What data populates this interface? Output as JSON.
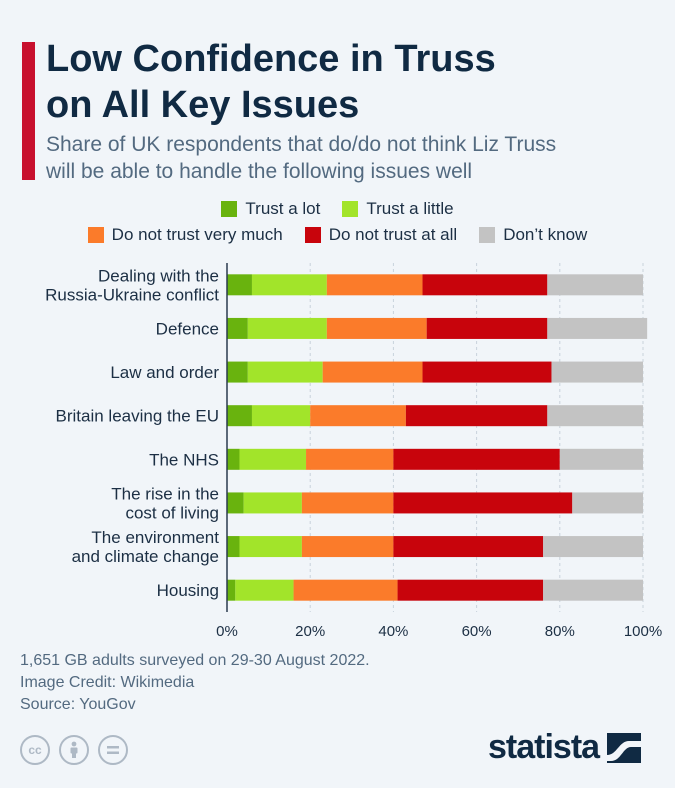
{
  "header": {
    "title_line1": "Low Confidence in Truss",
    "title_line2": "on All Key Issues",
    "subtitle_line1": "Share of UK respondents that do/do not think Liz Truss",
    "subtitle_line2": "will be able to handle the following issues well"
  },
  "colors": {
    "accent": "#c8102e",
    "trust_a_lot": "#69b30e",
    "trust_a_little": "#a2e42a",
    "not_very_much": "#fb7b2a",
    "not_at_all": "#c8040c",
    "dont_know": "#c3c3c3"
  },
  "chart_data": {
    "type": "bar",
    "orientation": "horizontal",
    "stacked": true,
    "categories": [
      [
        "Dealing with the",
        "Russia-Ukraine conflict"
      ],
      [
        "Defence"
      ],
      [
        "Law and order"
      ],
      [
        "Britain leaving the EU"
      ],
      [
        "The NHS"
      ],
      [
        "The rise in the",
        "cost of living"
      ],
      [
        "The environment",
        "and climate change"
      ],
      [
        "Housing"
      ]
    ],
    "series": [
      {
        "name": "Trust a lot",
        "color": "#69b30e",
        "values": [
          6,
          5,
          5,
          6,
          3,
          4,
          3,
          2
        ]
      },
      {
        "name": "Trust a little",
        "color": "#a2e42a",
        "values": [
          18,
          19,
          18,
          14,
          16,
          14,
          15,
          14
        ]
      },
      {
        "name": "Do not trust very much",
        "color": "#fb7b2a",
        "values": [
          23,
          24,
          24,
          23,
          21,
          22,
          22,
          25
        ]
      },
      {
        "name": "Do not trust at all",
        "color": "#c8040c",
        "values": [
          30,
          29,
          31,
          34,
          40,
          43,
          36,
          35
        ]
      },
      {
        "name": "Don’t know",
        "color": "#c3c3c3",
        "values": [
          23,
          24,
          22,
          23,
          20,
          17,
          24,
          24
        ]
      }
    ],
    "xlim": [
      0,
      100
    ],
    "xticks": [
      "0%",
      "20%",
      "40%",
      "60%",
      "80%",
      "100%"
    ],
    "legend_position": "top",
    "grid": true
  },
  "footer": {
    "note": "1,651 GB adults surveyed on 29-30 August 2022.",
    "credit": "Image Credit: Wikimedia",
    "source": "Source: YouGov"
  },
  "icons": [
    "cc-icon",
    "by-icon",
    "nd-icon"
  ],
  "logo": {
    "text": "statista"
  }
}
